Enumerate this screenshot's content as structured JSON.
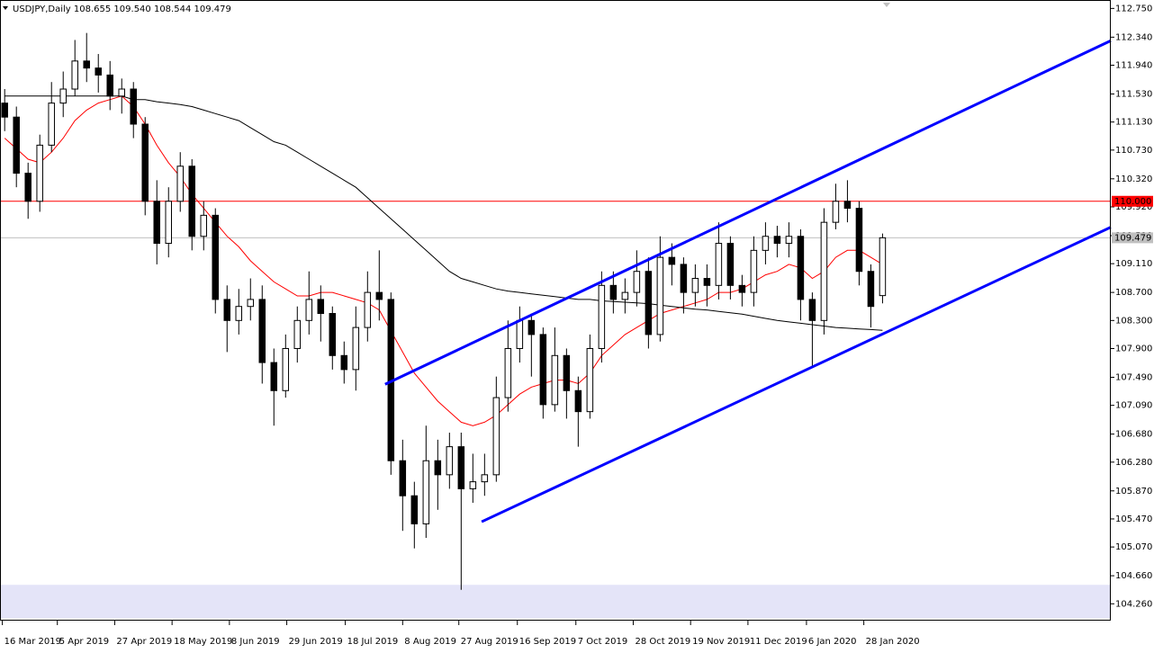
{
  "chart_data": {
    "type": "candlestick",
    "title": "USDJPY,Daily  108.655 109.540 108.544 109.479",
    "xlim": [
      -0.4,
      94.5
    ],
    "ylim": [
      104.02,
      112.87
    ],
    "xticks": [
      {
        "value": -0.2,
        "label": "16 Mar 2019"
      },
      {
        "value": 4.5,
        "label": "5 Apr 2019"
      },
      {
        "value": 9.4,
        "label": "27 Apr 2019"
      },
      {
        "value": 14.3,
        "label": "18 May 2019"
      },
      {
        "value": 19.2,
        "label": "8 Jun 2019"
      },
      {
        "value": 24.1,
        "label": "29 Jun 2019"
      },
      {
        "value": 29.1,
        "label": "18 Jul 2019"
      },
      {
        "value": 34.0,
        "label": "8 Aug 2019"
      },
      {
        "value": 38.8,
        "label": "27 Aug 2019"
      },
      {
        "value": 43.8,
        "label": "16 Sep 2019"
      },
      {
        "value": 48.8,
        "label": "7 Oct 2019"
      },
      {
        "value": 53.7,
        "label": "28 Oct 2019"
      },
      {
        "value": 58.6,
        "label": "19 Nov 2019"
      },
      {
        "value": 63.5,
        "label": "11 Dec 2019"
      },
      {
        "value": 68.5,
        "label": "6 Jan 2020"
      },
      {
        "value": 73.4,
        "label": "28 Jan 2020"
      }
    ],
    "yticks": [
      {
        "value": 112.75,
        "label": "112.750"
      },
      {
        "value": 112.34,
        "label": "112.340"
      },
      {
        "value": 111.94,
        "label": "111.940"
      },
      {
        "value": 111.53,
        "label": "111.530"
      },
      {
        "value": 111.13,
        "label": "111.130"
      },
      {
        "value": 110.73,
        "label": "110.730"
      },
      {
        "value": 110.32,
        "label": "110.320"
      },
      {
        "value": 109.92,
        "label": "109.920"
      },
      {
        "value": 109.51,
        "label": "109.510"
      },
      {
        "value": 109.11,
        "label": "109.110"
      },
      {
        "value": 108.7,
        "label": "108.700"
      },
      {
        "value": 108.3,
        "label": "108.300"
      },
      {
        "value": 107.9,
        "label": "107.900"
      },
      {
        "value": 107.49,
        "label": "107.490"
      },
      {
        "value": 107.09,
        "label": "107.090"
      },
      {
        "value": 106.68,
        "label": "106.680"
      },
      {
        "value": 106.28,
        "label": "106.280"
      },
      {
        "value": 105.87,
        "label": "105.870"
      },
      {
        "value": 105.47,
        "label": "105.470"
      },
      {
        "value": 105.07,
        "label": "105.070"
      },
      {
        "value": 104.66,
        "label": "104.660"
      },
      {
        "value": 104.26,
        "label": "104.260"
      }
    ],
    "open": [
      111.4,
      111.2,
      110.4,
      110.0,
      110.8,
      111.4,
      111.6,
      112.0,
      111.9,
      111.8,
      111.5,
      111.6,
      111.1,
      110.0,
      109.4,
      110.0,
      110.5,
      109.5,
      109.8,
      108.6,
      108.3,
      108.5,
      108.6,
      107.7,
      107.3,
      107.9,
      108.3,
      108.6,
      108.4,
      107.8,
      107.6,
      108.2,
      108.7,
      108.6,
      106.3,
      105.8,
      105.4,
      106.3,
      106.1,
      106.5,
      105.9,
      106.0,
      106.1,
      107.2,
      107.9,
      108.3,
      108.1,
      107.1,
      107.8,
      107.3,
      107.0,
      107.9,
      108.8,
      108.6,
      108.7,
      109.0,
      108.1,
      109.2,
      109.1,
      108.7,
      108.9,
      108.8,
      109.4,
      108.8,
      108.7,
      109.3,
      109.5,
      109.4,
      109.5,
      108.6,
      108.3,
      109.7,
      110.0,
      109.9,
      109.0,
      108.655
    ],
    "high": [
      111.6,
      111.35,
      110.55,
      110.95,
      111.7,
      111.85,
      112.3,
      112.4,
      112.1,
      112.0,
      111.75,
      111.7,
      111.2,
      110.3,
      110.2,
      110.7,
      110.6,
      110.0,
      109.9,
      108.8,
      108.75,
      108.9,
      108.8,
      107.9,
      108.1,
      108.5,
      109.0,
      108.8,
      108.5,
      108.0,
      108.5,
      109.0,
      109.3,
      108.7,
      106.6,
      106.0,
      106.8,
      106.6,
      106.7,
      106.7,
      106.4,
      106.4,
      107.5,
      108.3,
      108.5,
      108.4,
      108.2,
      108.2,
      107.9,
      107.5,
      108.1,
      109.0,
      109.0,
      108.9,
      109.3,
      109.2,
      109.5,
      109.4,
      109.2,
      109.1,
      109.1,
      109.7,
      109.5,
      108.95,
      109.5,
      109.7,
      109.65,
      109.7,
      109.6,
      108.7,
      109.9,
      110.25,
      110.3,
      110.0,
      109.1,
      109.54
    ],
    "low": [
      111.0,
      110.2,
      109.75,
      109.85,
      110.7,
      111.2,
      111.5,
      111.7,
      111.55,
      111.3,
      111.25,
      110.9,
      109.8,
      109.1,
      109.2,
      109.85,
      109.3,
      109.3,
      108.4,
      107.85,
      108.1,
      108.3,
      107.4,
      106.8,
      107.2,
      107.7,
      108.1,
      108.0,
      107.6,
      107.4,
      107.3,
      108.0,
      108.3,
      106.1,
      105.3,
      105.05,
      105.2,
      105.6,
      105.9,
      104.46,
      105.7,
      105.8,
      106.0,
      107.0,
      107.7,
      107.5,
      106.9,
      107.0,
      106.9,
      106.5,
      106.9,
      107.7,
      108.4,
      108.4,
      108.5,
      107.9,
      108.0,
      108.8,
      108.4,
      108.5,
      108.5,
      108.6,
      108.6,
      108.5,
      108.5,
      109.1,
      109.2,
      109.2,
      108.3,
      107.65,
      108.1,
      109.6,
      109.7,
      108.8,
      108.2,
      108.544
    ],
    "close": [
      111.2,
      110.4,
      110.0,
      110.8,
      111.4,
      111.6,
      112.0,
      111.9,
      111.8,
      111.5,
      111.6,
      111.1,
      110.0,
      109.4,
      110.0,
      110.5,
      109.5,
      109.8,
      108.6,
      108.3,
      108.5,
      108.6,
      107.7,
      107.3,
      107.9,
      108.3,
      108.6,
      108.4,
      107.8,
      107.6,
      108.2,
      108.7,
      108.6,
      106.3,
      105.8,
      105.4,
      106.3,
      106.1,
      106.5,
      105.9,
      106.0,
      106.1,
      107.2,
      107.9,
      108.3,
      108.1,
      107.1,
      107.8,
      107.3,
      107.0,
      107.9,
      108.8,
      108.6,
      108.7,
      109.0,
      108.1,
      109.2,
      109.1,
      108.7,
      108.9,
      108.8,
      109.4,
      108.8,
      108.7,
      109.3,
      109.5,
      109.4,
      109.5,
      108.6,
      108.3,
      109.7,
      110.0,
      109.9,
      109.0,
      108.5,
      109.479
    ],
    "moving_averages": [
      {
        "color": "#ff0000",
        "values": [
          110.9,
          110.75,
          110.6,
          110.55,
          110.7,
          110.9,
          111.15,
          111.3,
          111.4,
          111.45,
          111.5,
          111.35,
          111.1,
          110.8,
          110.55,
          110.35,
          110.1,
          109.9,
          109.7,
          109.5,
          109.35,
          109.15,
          109.0,
          108.85,
          108.75,
          108.65,
          108.65,
          108.7,
          108.7,
          108.65,
          108.6,
          108.55,
          108.45,
          108.15,
          107.85,
          107.55,
          107.35,
          107.15,
          107.0,
          106.85,
          106.8,
          106.85,
          106.95,
          107.1,
          107.25,
          107.35,
          107.4,
          107.45,
          107.45,
          107.4,
          107.55,
          107.8,
          107.95,
          108.1,
          108.2,
          108.3,
          108.4,
          108.45,
          108.5,
          108.55,
          108.6,
          108.7,
          108.7,
          108.75,
          108.85,
          108.95,
          109.0,
          109.1,
          109.05,
          108.9,
          109.0,
          109.2,
          109.3,
          109.3,
          109.2,
          109.1
        ]
      },
      {
        "color": "#000000",
        "values": [
          111.5,
          111.5,
          111.5,
          111.5,
          111.5,
          111.5,
          111.5,
          111.5,
          111.5,
          111.5,
          111.5,
          111.45,
          111.45,
          111.42,
          111.4,
          111.38,
          111.35,
          111.3,
          111.25,
          111.2,
          111.15,
          111.05,
          110.95,
          110.85,
          110.8,
          110.7,
          110.6,
          110.5,
          110.4,
          110.3,
          110.2,
          110.05,
          109.9,
          109.75,
          109.6,
          109.45,
          109.3,
          109.15,
          109.0,
          108.9,
          108.85,
          108.8,
          108.75,
          108.72,
          108.7,
          108.68,
          108.66,
          108.64,
          108.62,
          108.6,
          108.6,
          108.58,
          108.57,
          108.56,
          108.55,
          108.54,
          108.52,
          108.5,
          108.48,
          108.46,
          108.45,
          108.43,
          108.41,
          108.39,
          108.36,
          108.33,
          108.3,
          108.28,
          108.26,
          108.24,
          108.22,
          108.2,
          108.19,
          108.18,
          108.17,
          108.16
        ]
      }
    ],
    "trendlines": [
      {
        "color": "#0000ff",
        "x": [
          32.5,
          94.5
        ],
        "y": [
          107.39,
          112.29
        ]
      },
      {
        "color": "#0000ff",
        "x": [
          40.75,
          94.5
        ],
        "y": [
          105.43,
          109.63
        ]
      }
    ],
    "level_line": {
      "value": 110.0,
      "label": "110.000",
      "color": "#ff0000"
    },
    "price_line": {
      "value": 109.479,
      "label": "109.479",
      "color": "#c0c0c0"
    },
    "zone": {
      "y": [
        104.05,
        104.53
      ],
      "color": "#e4e4f8"
    }
  }
}
